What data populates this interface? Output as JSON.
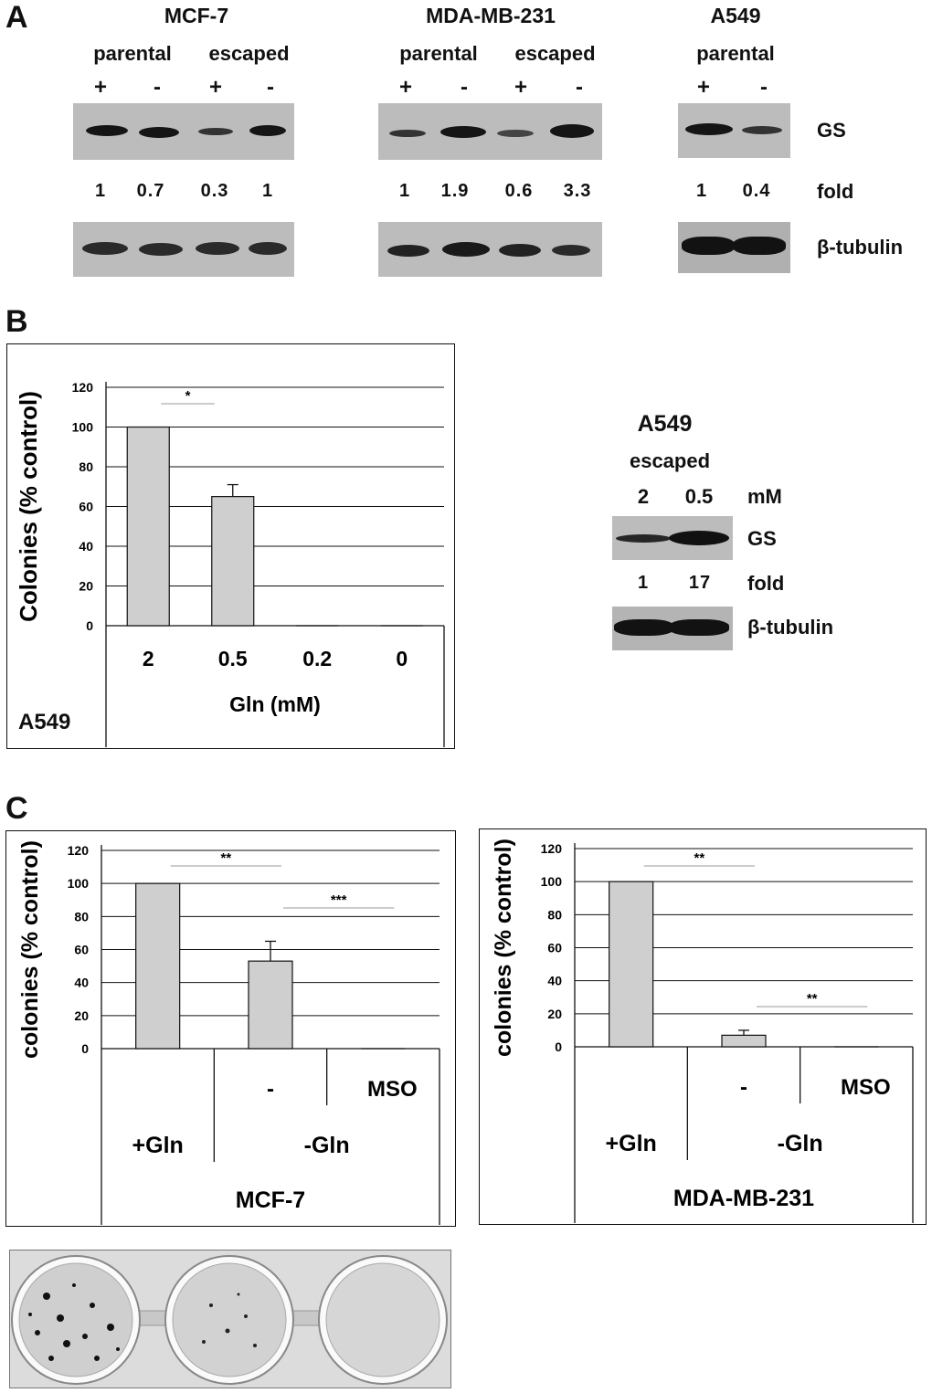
{
  "panel_a": {
    "letter": "A",
    "mcf7": {
      "title": "MCF-7",
      "group1": "parental",
      "group2": "escaped",
      "lanes": [
        "+",
        "-",
        "+",
        "-"
      ],
      "folds": [
        "1",
        "0.7",
        "0.3",
        "1"
      ]
    },
    "mda": {
      "title": "MDA-MB-231",
      "group1": "parental",
      "group2": "escaped",
      "lanes": [
        "+",
        "-",
        "+",
        "-"
      ],
      "folds": [
        "1",
        "1.9",
        "0.6",
        "3.3"
      ]
    },
    "a549": {
      "title": "A549",
      "group1": "parental",
      "lanes": [
        "+",
        "-"
      ],
      "folds": [
        "1",
        "0.4"
      ]
    },
    "row_gs": "GS",
    "row_fold": "fold",
    "row_tubulin": "β-tubulin"
  },
  "panel_b": {
    "letter": "B",
    "inset": {
      "title": "A549",
      "subtitle": "escaped",
      "lanes": [
        "2",
        "0.5"
      ],
      "unit": "mM",
      "row_gs": "GS",
      "folds": [
        "1",
        "17"
      ],
      "row_fold": "fold",
      "row_tubulin": "β-tubulin"
    },
    "corner_label": "A549"
  },
  "panel_c": {
    "letter": "C",
    "chart1_group_sub": [
      "-",
      "MSO"
    ],
    "chart2_group_sub": [
      "-",
      "MSO"
    ]
  },
  "chart_data": [
    {
      "type": "bar",
      "title": "A549",
      "categories": [
        "2",
        "0.5",
        "0.2",
        "0"
      ],
      "values": [
        100,
        65,
        0,
        0
      ],
      "errors": [
        0,
        6,
        0,
        0
      ],
      "ylabel": "Colonies (% control)",
      "xlabel": "Gln (mM)",
      "ylim": [
        0,
        120
      ],
      "yticks": [
        "0",
        "20",
        "40",
        "60",
        "80",
        "100",
        "120"
      ],
      "significance": [
        {
          "from": "2",
          "to": "0.5",
          "label": "*"
        }
      ]
    },
    {
      "type": "bar",
      "title": "MCF-7",
      "categories": [
        "+Gln",
        "-",
        "MSO"
      ],
      "group_label": "-Gln",
      "values": [
        100,
        53,
        0
      ],
      "errors": [
        0,
        12,
        0
      ],
      "ylabel": "colonies (% control)",
      "xlabel": "MCF-7",
      "ylim": [
        0,
        120
      ],
      "yticks": [
        "0",
        "20",
        "40",
        "60",
        "80",
        "100",
        "120"
      ],
      "significance": [
        {
          "from": "+Gln",
          "to": "-",
          "label": "**"
        },
        {
          "from": "-",
          "to": "MSO",
          "label": "***"
        }
      ]
    },
    {
      "type": "bar",
      "title": "MDA-MB-231",
      "categories": [
        "+Gln",
        "-",
        "MSO"
      ],
      "group_label": "-Gln",
      "values": [
        100,
        7,
        0
      ],
      "errors": [
        0,
        3,
        0
      ],
      "ylabel": "colonies (% control)",
      "xlabel": "MDA-MB-231",
      "ylim": [
        0,
        120
      ],
      "yticks": [
        "0",
        "20",
        "40",
        "60",
        "80",
        "100",
        "120"
      ],
      "significance": [
        {
          "from": "+Gln",
          "to": "-",
          "label": "**"
        },
        {
          "from": "-",
          "to": "MSO",
          "label": "**"
        }
      ]
    }
  ]
}
